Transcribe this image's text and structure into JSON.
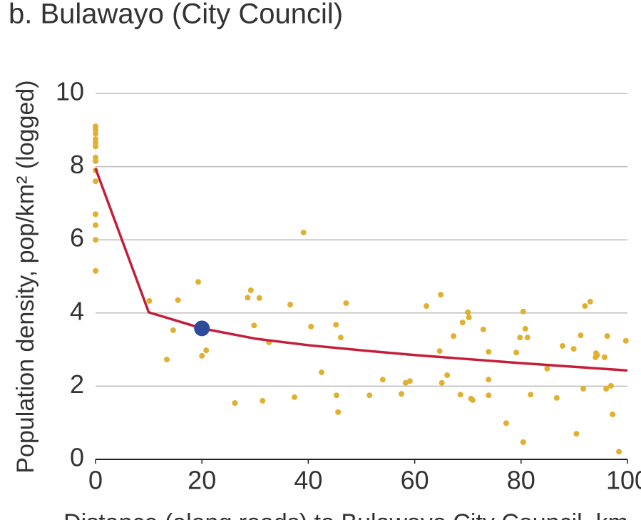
{
  "chart_data": {
    "type": "scatter",
    "title": "b. Bulawayo (City Council)",
    "y_label": "Population density, pop/km² (logged)",
    "x_label": "Distance (along roads) to Bulawayo City Council, km",
    "xlim": [
      0,
      100
    ],
    "xticks": [
      0,
      20,
      40,
      60,
      80,
      100
    ],
    "ylim": [
      0,
      10
    ],
    "yticks": [
      0,
      2,
      4,
      6,
      8,
      10
    ],
    "grid": true,
    "series": [
      {
        "type": "scatter",
        "color": "#e0b030",
        "x": [
          0,
          0,
          0,
          0,
          0,
          0,
          0,
          0,
          0,
          0,
          0,
          0,
          0,
          0,
          10.1,
          13.4,
          14.6,
          15.5,
          19.3,
          20.0,
          20.8,
          26.2,
          28.6,
          29.2,
          29.8,
          30.8,
          31.4,
          32.6,
          36.6,
          37.4,
          39.1,
          40.5,
          42.5,
          45.2,
          45.3,
          45.6,
          46.1,
          47.1,
          51.5,
          54.0,
          57.5,
          58.3,
          59.1,
          62.2,
          64.7,
          64.9,
          65.1,
          66.1,
          67.3,
          68.6,
          69.0,
          70.0,
          70.2,
          70.6,
          70.9,
          72.9,
          73.9,
          73.9,
          73.9,
          77.2,
          79.1,
          79.8,
          80.4,
          80.4,
          80.8,
          81.2,
          81.8,
          84.9,
          86.7,
          87.8,
          89.9,
          90.4,
          91.2,
          91.7,
          92.0,
          93.0,
          94.0,
          94.1,
          94.3,
          95.7,
          96.0,
          96.2,
          96.9,
          97.2,
          98.4,
          99.7
        ],
        "values": [
          9.1,
          9.0,
          8.9,
          8.75,
          8.65,
          8.55,
          8.25,
          8.15,
          7.9,
          7.6,
          6.7,
          6.4,
          6.0,
          5.15,
          4.33,
          2.73,
          3.53,
          4.35,
          4.85,
          2.83,
          2.98,
          1.54,
          4.42,
          4.62,
          3.66,
          4.41,
          1.6,
          3.2,
          4.23,
          1.7,
          6.2,
          3.63,
          2.38,
          3.68,
          1.75,
          1.29,
          3.33,
          4.27,
          1.75,
          2.18,
          1.79,
          2.09,
          2.14,
          4.19,
          2.96,
          4.5,
          2.09,
          2.3,
          3.37,
          1.77,
          3.74,
          4.02,
          3.88,
          1.66,
          1.62,
          3.55,
          2.94,
          2.18,
          1.75,
          0.99,
          2.92,
          3.33,
          0.47,
          4.04,
          3.57,
          3.33,
          1.77,
          2.48,
          1.68,
          3.1,
          3.02,
          0.7,
          3.39,
          1.93,
          4.19,
          4.31,
          2.79,
          2.9,
          2.85,
          2.79,
          1.93,
          3.37,
          2.01,
          1.23,
          0.21,
          3.24
        ]
      },
      {
        "type": "line",
        "color": "#c41e3a",
        "x": [
          0,
          10,
          20,
          30,
          40,
          50,
          60,
          70,
          80,
          90,
          100
        ],
        "values": [
          7.95,
          4.02,
          3.58,
          3.3,
          3.12,
          2.98,
          2.85,
          2.74,
          2.63,
          2.53,
          2.43
        ]
      },
      {
        "type": "highlight",
        "color": "#2e4a9b",
        "x": [
          20
        ],
        "values": [
          3.58
        ]
      }
    ]
  }
}
